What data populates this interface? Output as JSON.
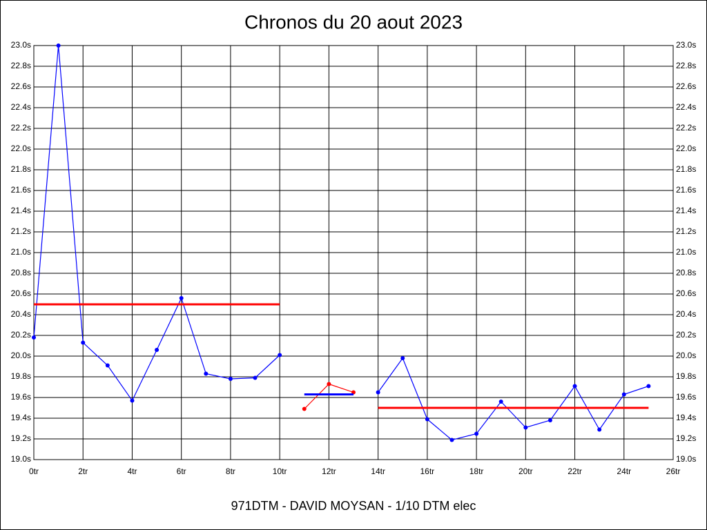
{
  "chart_data": {
    "type": "line",
    "title": "Chronos du 20 aout 2023",
    "x_label": "971DTM - DAVID MOYSAN - 1/10 DTM elec",
    "xlim": [
      0,
      26
    ],
    "xticks": [
      {
        "value": 0,
        "label": "0tr"
      },
      {
        "value": 2,
        "label": "2tr"
      },
      {
        "value": 4,
        "label": "4tr"
      },
      {
        "value": 6,
        "label": "6tr"
      },
      {
        "value": 8,
        "label": "8tr"
      },
      {
        "value": 10,
        "label": "10tr"
      },
      {
        "value": 12,
        "label": "12tr"
      },
      {
        "value": 14,
        "label": "14tr"
      },
      {
        "value": 16,
        "label": "16tr"
      },
      {
        "value": 18,
        "label": "18tr"
      },
      {
        "value": 20,
        "label": "20tr"
      },
      {
        "value": 22,
        "label": "22tr"
      },
      {
        "value": 24,
        "label": "24tr"
      },
      {
        "value": 26,
        "label": "26tr"
      }
    ],
    "ylim": [
      19.0,
      23.0
    ],
    "yticks": [
      {
        "value": 19.0,
        "label": "19.0s"
      },
      {
        "value": 19.2,
        "label": "19.2s"
      },
      {
        "value": 19.4,
        "label": "19.4s"
      },
      {
        "value": 19.6,
        "label": "19.6s"
      },
      {
        "value": 19.8,
        "label": "19.8s"
      },
      {
        "value": 20.0,
        "label": "20.0s"
      },
      {
        "value": 20.2,
        "label": "20.2s"
      },
      {
        "value": 20.4,
        "label": "20.4s"
      },
      {
        "value": 20.6,
        "label": "20.6s"
      },
      {
        "value": 20.8,
        "label": "20.8s"
      },
      {
        "value": 21.0,
        "label": "21.0s"
      },
      {
        "value": 21.2,
        "label": "21.2s"
      },
      {
        "value": 21.4,
        "label": "21.4s"
      },
      {
        "value": 21.6,
        "label": "21.6s"
      },
      {
        "value": 21.8,
        "label": "21.8s"
      },
      {
        "value": 22.0,
        "label": "22.0s"
      },
      {
        "value": 22.2,
        "label": "22.2s"
      },
      {
        "value": 22.4,
        "label": "22.4s"
      },
      {
        "value": 22.6,
        "label": "22.6s"
      },
      {
        "value": 22.8,
        "label": "22.8s"
      },
      {
        "value": 23.0,
        "label": "23.0s"
      }
    ],
    "grid": true,
    "right_axis_labels": true,
    "series": [
      {
        "color": "#0000ff",
        "markers": true,
        "x": [
          0,
          1,
          2,
          3,
          4,
          5,
          6,
          7,
          8,
          9,
          10
        ],
        "values": [
          20.18,
          23.0,
          20.13,
          19.91,
          19.57,
          20.06,
          20.56,
          19.83,
          19.78,
          19.79,
          20.01
        ]
      },
      {
        "color": "#ff0000",
        "markers": true,
        "x": [
          11,
          12,
          13
        ],
        "values": [
          19.49,
          19.73,
          19.65
        ]
      },
      {
        "color": "#0000ff",
        "markers": true,
        "x": [
          14,
          15,
          16,
          17,
          18,
          19,
          20,
          21,
          22,
          23,
          24,
          25
        ],
        "values": [
          19.65,
          19.98,
          19.39,
          19.19,
          19.25,
          19.56,
          19.31,
          19.38,
          19.71,
          19.29,
          19.63,
          19.71
        ]
      },
      {
        "color": "#ff0000",
        "markers": false,
        "x": [
          0,
          10
        ],
        "values": [
          20.5,
          20.5
        ]
      },
      {
        "color": "#0000ff",
        "markers": false,
        "x": [
          11,
          13
        ],
        "values": [
          19.63,
          19.63
        ]
      },
      {
        "color": "#ff0000",
        "markers": false,
        "x": [
          14,
          25
        ],
        "values": [
          19.5,
          19.5
        ]
      }
    ]
  }
}
